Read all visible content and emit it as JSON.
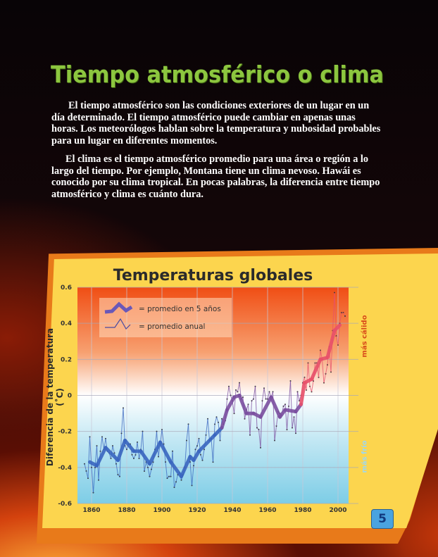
{
  "page": {
    "title": "Tiempo atmosférico o clima",
    "paragraph1": [
      "El tiempo atmosférico son las condiciones exteriores de un lugar en un",
      "día determinado.  El tiempo atmosférico puede cambiar en apenas unas",
      "horas.  Los meteorólogos hablan sobre la temperatura y nubosidad probables",
      "para un lugar en diferentes momentos."
    ],
    "paragraph2": [
      "El clima es el tiempo atmosférico promedio para una área o región a lo",
      "largo del tiempo.  Por ejemplo, Montana tiene un clima nevoso.  Hawái es",
      "conocido por su clima tropical.  En pocas palabras, la diferencia entre tiempo",
      "atmosférico y clima es cuánto dura."
    ],
    "page_number": "5"
  },
  "chart_data": {
    "type": "line",
    "title": "Temperaturas globales",
    "ylabel": "Diferencia de la temperatura (˚C)",
    "xlabel": "",
    "xlim": [
      1852,
      2006
    ],
    "ylim": [
      -0.6,
      0.6
    ],
    "xticks": [
      1860,
      1880,
      1900,
      1920,
      1940,
      1960,
      1980,
      2000
    ],
    "yticks": [
      0.6,
      0.4,
      0.2,
      0,
      -0.2,
      -0.4,
      -0.6
    ],
    "ytick_labels": [
      "0.6",
      "0.4",
      "0.2",
      "0",
      "-0.2",
      "-0.4",
      "-0.6"
    ],
    "grid": true,
    "legend_placement": "top-left",
    "right_axis_labels": {
      "top": "más cálido",
      "bottom": "más frío"
    },
    "colors": {
      "warm": "#f05218",
      "cold": "#7fcfe8",
      "early": "#3a66c0",
      "mid": "#7b4fa0",
      "late": "#e8506a"
    },
    "series": [
      {
        "name": "= promedio en 5 años",
        "x": [
          1859,
          1863,
          1868,
          1875,
          1879,
          1884,
          1888,
          1893,
          1899,
          1905,
          1911,
          1916,
          1918,
          1921,
          1930,
          1934,
          1937,
          1941,
          1944,
          1948,
          1952,
          1956,
          1962,
          1967,
          1970,
          1976,
          1979,
          1981,
          1985,
          1990,
          1994,
          1998,
          2001
        ],
        "y": [
          -0.37,
          -0.39,
          -0.29,
          -0.36,
          -0.25,
          -0.31,
          -0.31,
          -0.38,
          -0.26,
          -0.37,
          -0.45,
          -0.34,
          -0.36,
          -0.31,
          -0.22,
          -0.18,
          -0.08,
          -0.01,
          0.0,
          -0.1,
          -0.1,
          -0.12,
          -0.01,
          -0.12,
          -0.08,
          -0.09,
          -0.05,
          0.07,
          0.09,
          0.2,
          0.21,
          0.36,
          0.39
        ]
      },
      {
        "name": "= promedio anual",
        "x_start": 1856,
        "y": [
          -0.38,
          -0.42,
          -0.46,
          -0.23,
          -0.4,
          -0.54,
          -0.4,
          -0.28,
          -0.47,
          -0.31,
          -0.23,
          -0.3,
          -0.24,
          -0.31,
          -0.32,
          -0.35,
          -0.28,
          -0.32,
          -0.38,
          -0.44,
          -0.45,
          -0.21,
          -0.07,
          -0.28,
          -0.3,
          -0.27,
          -0.27,
          -0.33,
          -0.35,
          -0.33,
          -0.26,
          -0.35,
          -0.3,
          -0.2,
          -0.42,
          -0.37,
          -0.4,
          -0.45,
          -0.41,
          -0.37,
          -0.3,
          -0.2,
          -0.34,
          -0.27,
          -0.19,
          -0.27,
          -0.37,
          -0.46,
          -0.45,
          -0.45,
          -0.31,
          -0.51,
          -0.48,
          -0.44,
          -0.43,
          -0.47,
          -0.44,
          -0.4,
          -0.25,
          -0.16,
          -0.37,
          -0.5,
          -0.39,
          -0.3,
          -0.28,
          -0.24,
          -0.33,
          -0.36,
          -0.3,
          -0.22,
          -0.13,
          -0.25,
          -0.24,
          -0.37,
          -0.16,
          -0.12,
          -0.15,
          -0.25,
          -0.13,
          -0.16,
          -0.14,
          -0.02,
          0.05,
          0.0,
          -0.03,
          -0.1,
          0.03,
          0.02,
          0.07,
          -0.02,
          -0.01,
          -0.13,
          -0.08,
          -0.05,
          -0.22,
          -0.03,
          -0.02,
          0.05,
          -0.18,
          -0.19,
          -0.29,
          -0.03,
          0.04,
          -0.02,
          -0.02,
          0.02,
          -0.01,
          0.02,
          -0.25,
          -0.17,
          -0.09,
          -0.1,
          -0.11,
          -0.06,
          -0.05,
          -0.19,
          -0.06,
          0.08,
          -0.18,
          -0.12,
          -0.21,
          0.02,
          -0.03,
          0.0,
          0.07,
          0.1,
          0.03,
          0.18,
          0.05,
          0.02,
          0.08,
          0.18,
          0.18,
          0.1,
          0.25,
          0.2,
          0.07,
          0.12,
          0.17,
          0.27,
          0.13,
          0.36,
          0.57,
          0.33,
          0.28,
          0.4,
          0.46,
          0.46,
          0.44
        ]
      }
    ]
  }
}
